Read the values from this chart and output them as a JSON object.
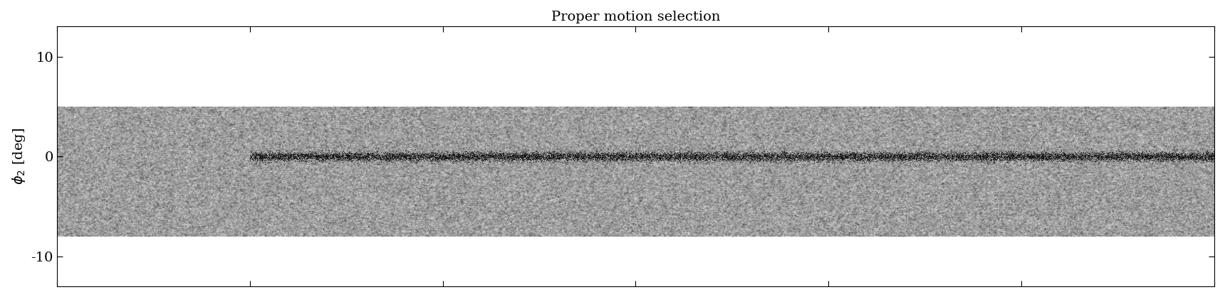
{
  "title": "Proper motion selection",
  "ylabel": "$\\phi_2$ [deg]",
  "xlabel": "",
  "xlim": [
    -100,
    20
  ],
  "ylim": [
    -13,
    13
  ],
  "yticks": [
    -10,
    0,
    10
  ],
  "background_color": "#ffffff",
  "phi2_band_min": -8.0,
  "phi2_band_max": 5.0,
  "phi1_min": -100,
  "phi1_max": 20,
  "figsize": [
    17.2,
    4.18
  ],
  "dpi": 100,
  "title_fontsize": 14,
  "label_fontsize": 14
}
